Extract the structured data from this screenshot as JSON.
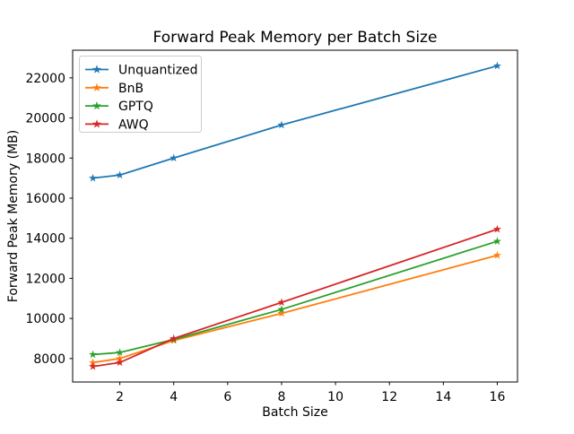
{
  "chart_data": {
    "type": "line",
    "title": "Forward Peak Memory per Batch Size",
    "xlabel": "Batch Size",
    "ylabel": "Forward Peak Memory (MB)",
    "x": [
      1,
      2,
      4,
      8,
      16
    ],
    "series": [
      {
        "name": "Unquantized",
        "color": "#1f77b4",
        "marker": "star",
        "values": [
          17000,
          17150,
          18000,
          19650,
          22600
        ]
      },
      {
        "name": "BnB",
        "color": "#ff7f0e",
        "marker": "star",
        "values": [
          7800,
          8000,
          8900,
          10250,
          13150
        ]
      },
      {
        "name": "GPTQ",
        "color": "#2ca02c",
        "marker": "star",
        "values": [
          8200,
          8300,
          8950,
          10450,
          13850
        ]
      },
      {
        "name": "AWQ",
        "color": "#d62728",
        "marker": "star",
        "values": [
          7600,
          7800,
          9000,
          10800,
          14450
        ]
      }
    ],
    "x_ticks": [
      2,
      4,
      6,
      8,
      10,
      12,
      14,
      16
    ],
    "y_ticks": [
      8000,
      10000,
      12000,
      14000,
      16000,
      18000,
      20000,
      22000
    ],
    "xlim": [
      0.25,
      16.75
    ],
    "ylim": [
      6830,
      23380
    ],
    "grid": false,
    "background": "#ffffff",
    "legend": {
      "position": "upper-left",
      "entries": [
        "Unquantized",
        "BnB",
        "GPTQ",
        "AWQ"
      ]
    }
  }
}
